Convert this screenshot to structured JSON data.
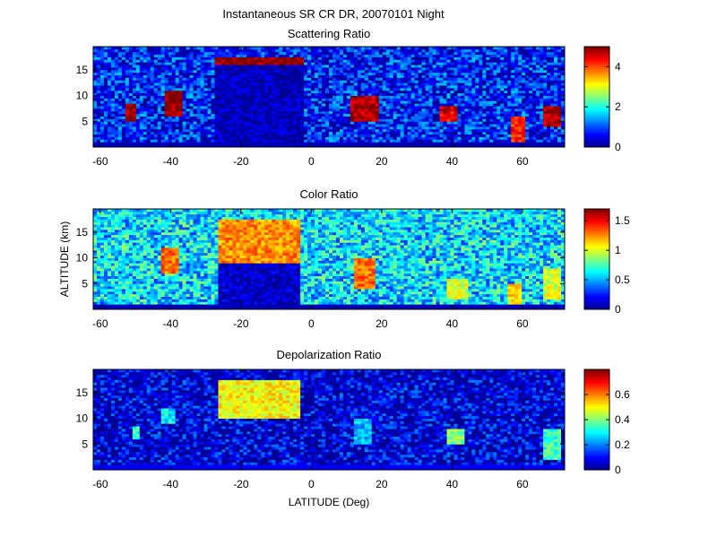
{
  "figure": {
    "title": "Instantaneous SR CR DR, 20070101 Night",
    "ylabel": "ALTITUDE (km)",
    "xlabel": "LATITUDE (Deg)"
  },
  "colormap": [
    "#00008f",
    "#0000ff",
    "#007fff",
    "#00ffff",
    "#7fff7f",
    "#ffff00",
    "#ff7f00",
    "#ff0000",
    "#7f0000"
  ],
  "chart_data": [
    {
      "type": "heatmap",
      "title": "Scattering Ratio",
      "x_ticks": [
        -60,
        -40,
        -20,
        0,
        20,
        40,
        60
      ],
      "y_ticks": [
        5,
        10,
        15
      ],
      "xlim": [
        -62,
        72
      ],
      "ylim": [
        0,
        19.5
      ],
      "colorbar": {
        "range": [
          0,
          5
        ],
        "ticks": [
          "0",
          "2",
          "4"
        ],
        "tick_values": [
          0,
          2,
          4
        ]
      },
      "features": [
        {
          "lat": [
            -27,
            -2
          ],
          "alt": [
            16.2,
            17.5
          ],
          "value": 5
        },
        {
          "lat": [
            -27,
            -2
          ],
          "alt": [
            0.5,
            16.2
          ],
          "value": 0.2
        },
        {
          "lat": [
            -42,
            -37
          ],
          "alt": [
            6,
            11
          ],
          "value": 5
        },
        {
          "lat": [
            -53,
            -50
          ],
          "alt": [
            5,
            8.5
          ],
          "value": 4.8
        },
        {
          "lat": [
            11,
            19
          ],
          "alt": [
            5,
            10
          ],
          "value": 4.8
        },
        {
          "lat": [
            36,
            42
          ],
          "alt": [
            5,
            8
          ],
          "value": 4.5
        },
        {
          "lat": [
            57,
            61
          ],
          "alt": [
            1,
            6
          ],
          "value": 4.2
        },
        {
          "lat": [
            66,
            71
          ],
          "alt": [
            4,
            8
          ],
          "value": 4.8
        }
      ]
    },
    {
      "type": "heatmap",
      "title": "Color Ratio",
      "x_ticks": [
        -60,
        -40,
        -20,
        0,
        20,
        40,
        60
      ],
      "y_ticks": [
        5,
        10,
        15
      ],
      "xlim": [
        -62,
        72
      ],
      "ylim": [
        0,
        19.5
      ],
      "colorbar": {
        "range": [
          0,
          1.7
        ],
        "ticks": [
          "0",
          "0.5",
          "1",
          "1.5"
        ],
        "tick_values": [
          0,
          0.5,
          1,
          1.5
        ]
      },
      "features": [
        {
          "lat": [
            -26,
            -3
          ],
          "alt": [
            9,
            17.5
          ],
          "value": 1.25
        },
        {
          "lat": [
            -26,
            -3
          ],
          "alt": [
            0.5,
            9
          ],
          "value": 0.1
        },
        {
          "lat": [
            -43,
            -38
          ],
          "alt": [
            7,
            12
          ],
          "value": 1.3
        },
        {
          "lat": [
            12,
            18
          ],
          "alt": [
            4,
            10
          ],
          "value": 1.3
        },
        {
          "lat": [
            38,
            45
          ],
          "alt": [
            2,
            6
          ],
          "value": 1.0
        },
        {
          "lat": [
            56,
            60
          ],
          "alt": [
            1,
            5
          ],
          "value": 1.1
        },
        {
          "lat": [
            66,
            71
          ],
          "alt": [
            2,
            8
          ],
          "value": 1.0
        }
      ]
    },
    {
      "type": "heatmap",
      "title": "Depolarization Ratio",
      "x_ticks": [
        -60,
        -40,
        -20,
        0,
        20,
        40,
        60
      ],
      "y_ticks": [
        5,
        10,
        15
      ],
      "xlim": [
        -62,
        72
      ],
      "ylim": [
        0,
        19.5
      ],
      "colorbar": {
        "range": [
          0,
          0.8
        ],
        "ticks": [
          "0",
          "0.2",
          "0.4",
          "0.6"
        ],
        "tick_values": [
          0,
          0.2,
          0.4,
          0.6
        ]
      },
      "features": [
        {
          "lat": [
            -26,
            -3
          ],
          "alt": [
            10,
            17.5
          ],
          "value": 0.5
        },
        {
          "lat": [
            -43,
            -39
          ],
          "alt": [
            9,
            12
          ],
          "value": 0.3
        },
        {
          "lat": [
            -51,
            -49
          ],
          "alt": [
            6,
            8.5
          ],
          "value": 0.35
        },
        {
          "lat": [
            12,
            17
          ],
          "alt": [
            5,
            10
          ],
          "value": 0.25
        },
        {
          "lat": [
            38,
            44
          ],
          "alt": [
            5,
            8
          ],
          "value": 0.4
        },
        {
          "lat": [
            66,
            71
          ],
          "alt": [
            2,
            8
          ],
          "value": 0.35
        }
      ]
    }
  ]
}
